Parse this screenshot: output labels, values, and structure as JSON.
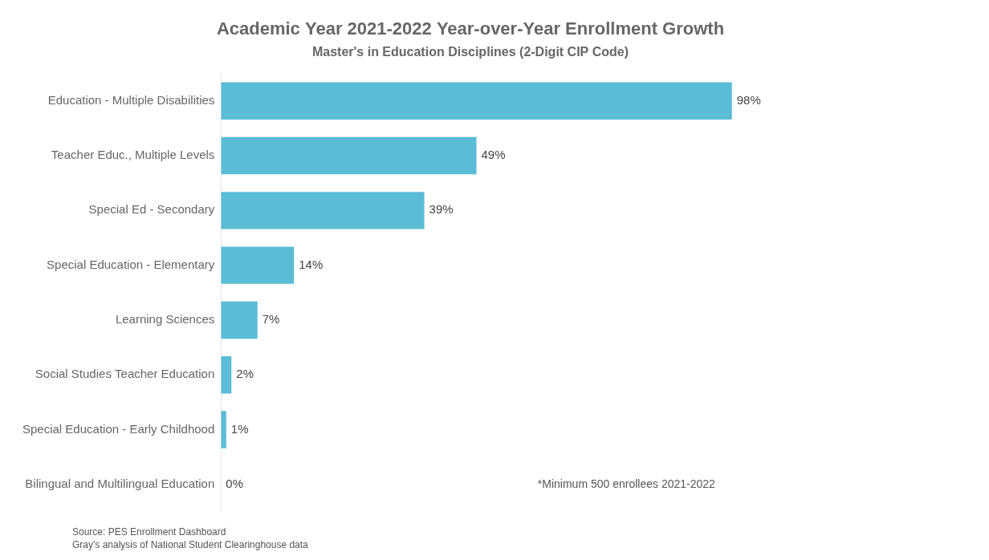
{
  "chart_data": {
    "type": "bar",
    "orientation": "horizontal",
    "title": "Academic Year 2021-2022 Year-over-Year Enrollment Growth",
    "subtitle": "Master's in Education Disciplines (2-Digit CIP Code)",
    "categories": [
      "Bilingual and Multilingual Education",
      "Special Education - Early Childhood",
      "Social Studies Teacher Education",
      "Learning Sciences",
      "Special Education - Elementary",
      "Special Ed - Secondary",
      "Teacher Educ., Multiple Levels",
      "Education - Multiple Disabilities"
    ],
    "values": [
      0,
      1,
      2,
      7,
      14,
      39,
      49,
      98
    ],
    "value_labels": [
      "0%",
      "1%",
      "2%",
      "7%",
      "14%",
      "39%",
      "49%",
      "98%"
    ],
    "data_labels": true,
    "color": "#5bbcd6",
    "xlim": [
      0,
      135
    ],
    "tick_labels": "y",
    "grid": false,
    "annotations": [
      "*Minimum 500 enrollees 2021-2022"
    ],
    "source": "Source: PES Enrollment Dashboard\nGray's analysis of National Student Clearinghouse data"
  }
}
